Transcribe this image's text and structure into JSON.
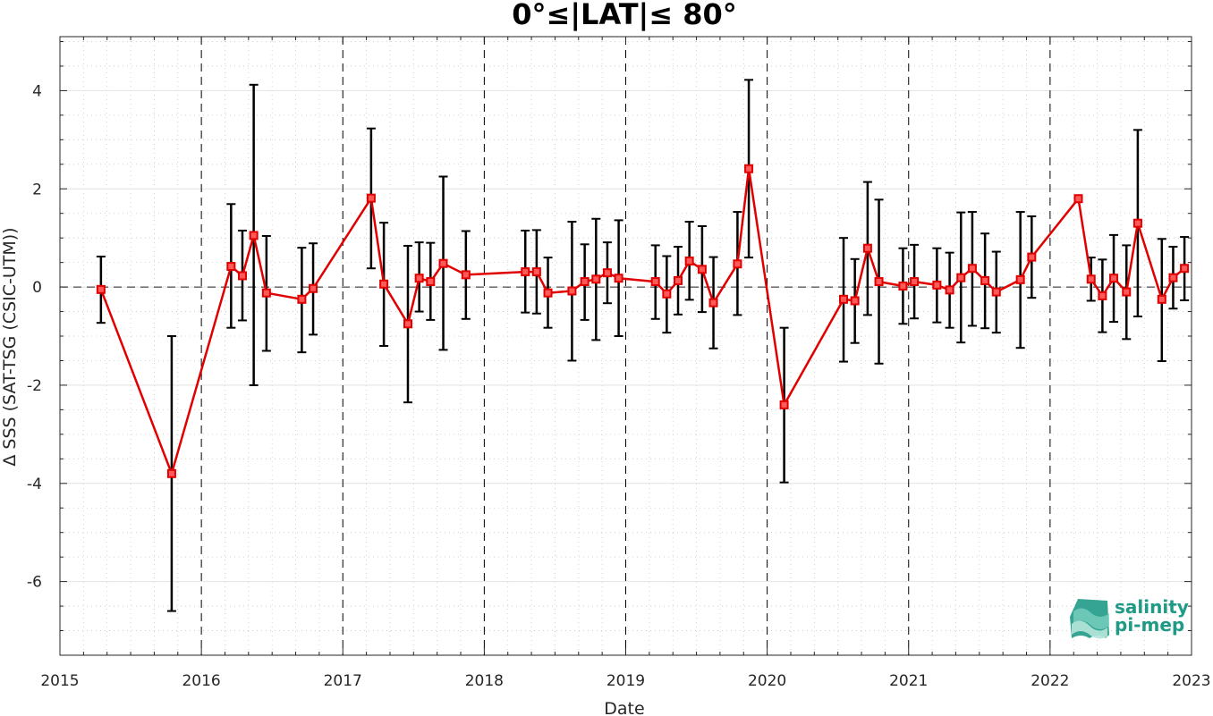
{
  "chart_data": {
    "type": "line",
    "title": "0°≤|LAT|≤ 80°",
    "xlabel": "Date",
    "ylabel": "Δ SSS (SAT-TSG (CSIC-UTM))",
    "xlim": [
      2015,
      2023
    ],
    "ylim": [
      -7.5,
      5.1
    ],
    "x_ticks": [
      "2015",
      "2016",
      "2017",
      "2018",
      "2019",
      "2020",
      "2021",
      "2022",
      "2023"
    ],
    "y_ticks": [
      "4",
      "2",
      "0",
      "-2",
      "-4",
      "-6"
    ],
    "y_tick_values": [
      4,
      2,
      0,
      -2,
      -4,
      -6
    ],
    "x_tick_values": [
      2015,
      2016,
      2017,
      2018,
      2019,
      2020,
      2021,
      2022,
      2023
    ],
    "grid": true,
    "series_color": "#e00000",
    "errorbar_color": "#000000",
    "points": [
      {
        "x": 2015.29,
        "y": -0.05,
        "lo": -0.73,
        "hi": 0.62
      },
      {
        "x": 2015.79,
        "y": -3.8,
        "lo": -6.6,
        "hi": -1.0
      },
      {
        "x": 2016.21,
        "y": 0.42,
        "lo": -0.83,
        "hi": 1.69
      },
      {
        "x": 2016.29,
        "y": 0.23,
        "lo": -0.68,
        "hi": 1.15
      },
      {
        "x": 2016.37,
        "y": 1.05,
        "lo": -2.0,
        "hi": 4.12
      },
      {
        "x": 2016.46,
        "y": -0.12,
        "lo": -1.3,
        "hi": 1.04
      },
      {
        "x": 2016.71,
        "y": -0.25,
        "lo": -1.33,
        "hi": 0.8
      },
      {
        "x": 2016.79,
        "y": -0.03,
        "lo": -0.97,
        "hi": 0.89
      },
      {
        "x": 2017.2,
        "y": 1.81,
        "lo": 0.38,
        "hi": 3.23
      },
      {
        "x": 2017.29,
        "y": 0.06,
        "lo": -1.2,
        "hi": 1.31
      },
      {
        "x": 2017.46,
        "y": -0.75,
        "lo": -2.35,
        "hi": 0.84
      },
      {
        "x": 2017.54,
        "y": 0.18,
        "lo": -0.5,
        "hi": 0.91
      },
      {
        "x": 2017.62,
        "y": 0.11,
        "lo": -0.67,
        "hi": 0.9
      },
      {
        "x": 2017.71,
        "y": 0.48,
        "lo": -1.28,
        "hi": 2.25
      },
      {
        "x": 2017.87,
        "y": 0.25,
        "lo": -0.65,
        "hi": 1.14
      },
      {
        "x": 2018.29,
        "y": 0.31,
        "lo": -0.52,
        "hi": 1.15
      },
      {
        "x": 2018.37,
        "y": 0.31,
        "lo": -0.54,
        "hi": 1.16
      },
      {
        "x": 2018.45,
        "y": -0.12,
        "lo": -0.83,
        "hi": 0.6
      },
      {
        "x": 2018.62,
        "y": -0.08,
        "lo": -1.5,
        "hi": 1.33
      },
      {
        "x": 2018.71,
        "y": 0.11,
        "lo": -0.67,
        "hi": 0.87
      },
      {
        "x": 2018.79,
        "y": 0.16,
        "lo": -1.08,
        "hi": 1.39
      },
      {
        "x": 2018.87,
        "y": 0.29,
        "lo": -0.33,
        "hi": 0.91
      },
      {
        "x": 2018.95,
        "y": 0.18,
        "lo": -1.0,
        "hi": 1.36
      },
      {
        "x": 2019.21,
        "y": 0.11,
        "lo": -0.65,
        "hi": 0.85
      },
      {
        "x": 2019.29,
        "y": -0.14,
        "lo": -0.93,
        "hi": 0.63
      },
      {
        "x": 2019.37,
        "y": 0.13,
        "lo": -0.56,
        "hi": 0.82
      },
      {
        "x": 2019.45,
        "y": 0.53,
        "lo": -0.26,
        "hi": 1.33
      },
      {
        "x": 2019.54,
        "y": 0.36,
        "lo": -0.51,
        "hi": 1.24
      },
      {
        "x": 2019.62,
        "y": -0.32,
        "lo": -1.25,
        "hi": 0.61
      },
      {
        "x": 2019.79,
        "y": 0.47,
        "lo": -0.57,
        "hi": 1.53
      },
      {
        "x": 2019.87,
        "y": 2.41,
        "lo": 0.6,
        "hi": 4.22
      },
      {
        "x": 2020.12,
        "y": -2.4,
        "lo": -3.98,
        "hi": -0.83
      },
      {
        "x": 2020.54,
        "y": -0.25,
        "lo": -1.52,
        "hi": 1.0
      },
      {
        "x": 2020.62,
        "y": -0.28,
        "lo": -1.14,
        "hi": 0.57
      },
      {
        "x": 2020.71,
        "y": 0.79,
        "lo": -0.57,
        "hi": 2.14
      },
      {
        "x": 2020.79,
        "y": 0.11,
        "lo": -1.56,
        "hi": 1.78
      },
      {
        "x": 2020.96,
        "y": 0.02,
        "lo": -0.75,
        "hi": 0.79
      },
      {
        "x": 2021.04,
        "y": 0.11,
        "lo": -0.64,
        "hi": 0.86
      },
      {
        "x": 2021.2,
        "y": 0.04,
        "lo": -0.72,
        "hi": 0.79
      },
      {
        "x": 2021.29,
        "y": -0.06,
        "lo": -0.83,
        "hi": 0.7
      },
      {
        "x": 2021.37,
        "y": 0.19,
        "lo": -1.13,
        "hi": 1.52
      },
      {
        "x": 2021.45,
        "y": 0.38,
        "lo": -0.79,
        "hi": 1.53
      },
      {
        "x": 2021.54,
        "y": 0.13,
        "lo": -0.84,
        "hi": 1.09
      },
      {
        "x": 2021.62,
        "y": -0.1,
        "lo": -0.93,
        "hi": 0.72
      },
      {
        "x": 2021.79,
        "y": 0.15,
        "lo": -1.24,
        "hi": 1.53
      },
      {
        "x": 2021.87,
        "y": 0.61,
        "lo": -0.22,
        "hi": 1.44
      },
      {
        "x": 2022.2,
        "y": 1.8,
        "lo": 1.75,
        "hi": 1.85
      },
      {
        "x": 2022.29,
        "y": 0.16,
        "lo": -0.28,
        "hi": 0.6
      },
      {
        "x": 2022.37,
        "y": -0.18,
        "lo": -0.92,
        "hi": 0.56
      },
      {
        "x": 2022.45,
        "y": 0.18,
        "lo": -0.71,
        "hi": 1.06
      },
      {
        "x": 2022.54,
        "y": -0.1,
        "lo": -1.06,
        "hi": 0.85
      },
      {
        "x": 2022.62,
        "y": 1.3,
        "lo": -0.6,
        "hi": 3.2
      },
      {
        "x": 2022.79,
        "y": -0.25,
        "lo": -1.51,
        "hi": 0.98
      },
      {
        "x": 2022.87,
        "y": 0.19,
        "lo": -0.44,
        "hi": 0.82
      },
      {
        "x": 2022.95,
        "y": 0.38,
        "lo": -0.27,
        "hi": 1.02
      }
    ]
  },
  "logo": {
    "line1": "salinity",
    "line2": "pi-mep",
    "color": "#1f9a86"
  }
}
